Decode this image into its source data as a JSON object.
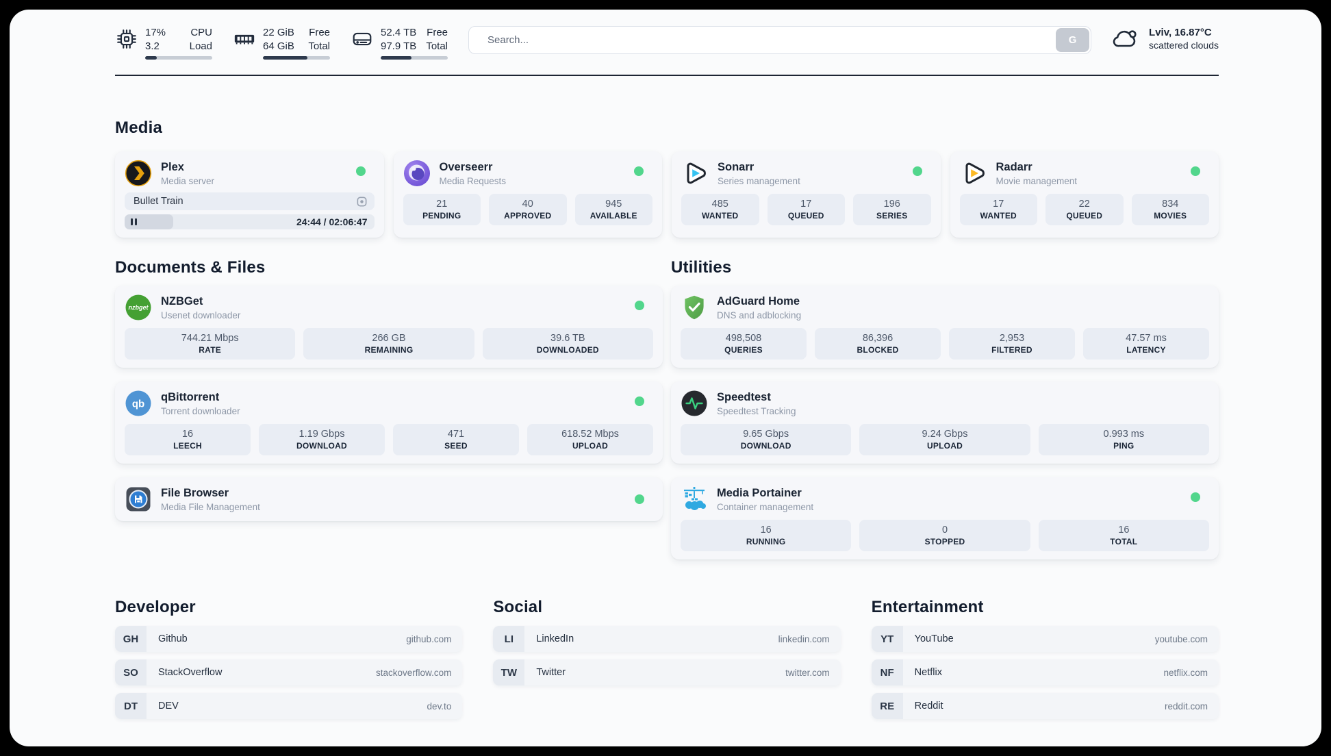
{
  "header": {
    "cpu": {
      "value_line1": "17%",
      "value_line2": "3.2",
      "label_line1": "CPU",
      "label_line2": "Load",
      "progress_pct": 17
    },
    "memory": {
      "value_line1": "22 GiB",
      "value_line2": "64 GiB",
      "label_line1": "Free",
      "label_line2": "Total",
      "progress_pct": 66
    },
    "disk": {
      "value_line1": "52.4 TB",
      "value_line2": "97.9 TB",
      "label_line1": "Free",
      "label_line2": "Total",
      "progress_pct": 46
    },
    "search": {
      "placeholder": "Search...",
      "button_label": "G"
    },
    "weather": {
      "location_temp": "Lviv, 16.87°C",
      "condition": "scattered clouds"
    }
  },
  "sections": {
    "media": {
      "title": "Media",
      "plex": {
        "name": "Plex",
        "subtitle": "Media server",
        "online": true,
        "now_playing": "Bullet Train",
        "time_display": "24:44 / 02:06:47",
        "elapsed": "24:44",
        "duration": "02:06:47",
        "progress_pct": 19.5
      },
      "overseerr": {
        "name": "Overseerr",
        "subtitle": "Media Requests",
        "online": true,
        "stats": [
          {
            "value": "21",
            "label": "PENDING"
          },
          {
            "value": "40",
            "label": "APPROVED"
          },
          {
            "value": "945",
            "label": "AVAILABLE"
          }
        ]
      },
      "sonarr": {
        "name": "Sonarr",
        "subtitle": "Series management",
        "online": true,
        "stats": [
          {
            "value": "485",
            "label": "WANTED"
          },
          {
            "value": "17",
            "label": "QUEUED"
          },
          {
            "value": "196",
            "label": "SERIES"
          }
        ]
      },
      "radarr": {
        "name": "Radarr",
        "subtitle": "Movie management",
        "online": true,
        "stats": [
          {
            "value": "17",
            "label": "WANTED"
          },
          {
            "value": "22",
            "label": "QUEUED"
          },
          {
            "value": "834",
            "label": "MOVIES"
          }
        ]
      }
    },
    "documents": {
      "title": "Documents & Files",
      "nzbget": {
        "name": "NZBGet",
        "subtitle": "Usenet downloader",
        "online": true,
        "stats": [
          {
            "value": "744.21 Mbps",
            "label": "RATE"
          },
          {
            "value": "266 GB",
            "label": "REMAINING"
          },
          {
            "value": "39.6 TB",
            "label": "DOWNLOADED"
          }
        ]
      },
      "qbittorrent": {
        "name": "qBittorrent",
        "subtitle": "Torrent downloader",
        "online": true,
        "stats": [
          {
            "value": "16",
            "label": "LEECH"
          },
          {
            "value": "1.19 Gbps",
            "label": "DOWNLOAD"
          },
          {
            "value": "471",
            "label": "SEED"
          },
          {
            "value": "618.52 Mbps",
            "label": "UPLOAD"
          }
        ]
      },
      "filebrowser": {
        "name": "File Browser",
        "subtitle": "Media File Management",
        "online": true
      }
    },
    "utilities": {
      "title": "Utilities",
      "adguard": {
        "name": "AdGuard Home",
        "subtitle": "DNS and adblocking",
        "stats": [
          {
            "value": "498,508",
            "label": "QUERIES"
          },
          {
            "value": "86,396",
            "label": "BLOCKED"
          },
          {
            "value": "2,953",
            "label": "FILTERED"
          },
          {
            "value": "47.57 ms",
            "label": "LATENCY"
          }
        ]
      },
      "speedtest": {
        "name": "Speedtest",
        "subtitle": "Speedtest Tracking",
        "stats": [
          {
            "value": "9.65 Gbps",
            "label": "DOWNLOAD"
          },
          {
            "value": "9.24 Gbps",
            "label": "UPLOAD"
          },
          {
            "value": "0.993 ms",
            "label": "PING"
          }
        ]
      },
      "portainer": {
        "name": "Media Portainer",
        "subtitle": "Container management",
        "online": true,
        "stats": [
          {
            "value": "16",
            "label": "RUNNING"
          },
          {
            "value": "0",
            "label": "STOPPED"
          },
          {
            "value": "16",
            "label": "TOTAL"
          }
        ]
      }
    },
    "bookmarks": {
      "developer": {
        "title": "Developer",
        "items": [
          {
            "abbr": "GH",
            "name": "Github",
            "domain": "github.com"
          },
          {
            "abbr": "SO",
            "name": "StackOverflow",
            "domain": "stackoverflow.com"
          },
          {
            "abbr": "DT",
            "name": "DEV",
            "domain": "dev.to"
          }
        ]
      },
      "social": {
        "title": "Social",
        "items": [
          {
            "abbr": "LI",
            "name": "LinkedIn",
            "domain": "linkedin.com"
          },
          {
            "abbr": "TW",
            "name": "Twitter",
            "domain": "twitter.com"
          }
        ]
      },
      "entertainment": {
        "title": "Entertainment",
        "items": [
          {
            "abbr": "YT",
            "name": "YouTube",
            "domain": "youtube.com"
          },
          {
            "abbr": "NF",
            "name": "Netflix",
            "domain": "netflix.com"
          },
          {
            "abbr": "RE",
            "name": "Reddit",
            "domain": "reddit.com"
          }
        ]
      }
    }
  },
  "colors": {
    "status_online": "#52d68c",
    "plex_accent": "#e5a00d",
    "sonarr_accent": "#36c3f1",
    "radarr_accent": "#fcb924",
    "adguard_accent": "#5fb254",
    "speedtest_accent": "#3ad07f",
    "portainer_accent": "#2fa9e1",
    "header_bar_fill": "#2e3a4d"
  }
}
